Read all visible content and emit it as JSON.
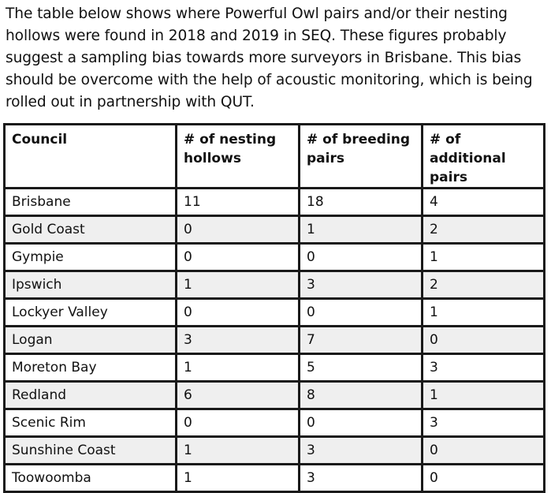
{
  "intro": {
    "text": "The table below shows where Powerful Owl pairs and/or their nesting hollows were found in 2018 and 2019 in SEQ. These figures probably suggest a sampling bias towards more surveyors in Brisbane. This bias should be overcome with the help of acoustic monitoring, which is being rolled out in partnership with QUT."
  },
  "table": {
    "headers": {
      "council": "Council",
      "nesting_hollows": "# of nesting hollows",
      "breeding_pairs": "# of breeding pairs",
      "additional_pairs": "# of additional pairs"
    },
    "rows": [
      {
        "council": "Brisbane",
        "nesting_hollows": "11",
        "breeding_pairs": "18",
        "additional_pairs": "4"
      },
      {
        "council": "Gold Coast",
        "nesting_hollows": "0",
        "breeding_pairs": "1",
        "additional_pairs": "2"
      },
      {
        "council": "Gympie",
        "nesting_hollows": "0",
        "breeding_pairs": "0",
        "additional_pairs": "1"
      },
      {
        "council": "Ipswich",
        "nesting_hollows": "1",
        "breeding_pairs": "3",
        "additional_pairs": "2"
      },
      {
        "council": "Lockyer Valley",
        "nesting_hollows": "0",
        "breeding_pairs": "0",
        "additional_pairs": "1"
      },
      {
        "council": "Logan",
        "nesting_hollows": "3",
        "breeding_pairs": "7",
        "additional_pairs": "0"
      },
      {
        "council": "Moreton Bay",
        "nesting_hollows": "1",
        "breeding_pairs": "5",
        "additional_pairs": "3"
      },
      {
        "council": "Redland",
        "nesting_hollows": "6",
        "breeding_pairs": "8",
        "additional_pairs": "1"
      },
      {
        "council": "Scenic Rim",
        "nesting_hollows": "0",
        "breeding_pairs": "0",
        "additional_pairs": "3"
      },
      {
        "council": "Sunshine Coast",
        "nesting_hollows": "1",
        "breeding_pairs": "3",
        "additional_pairs": "0"
      },
      {
        "council": "Toowoomba",
        "nesting_hollows": "1",
        "breeding_pairs": "3",
        "additional_pairs": "0"
      }
    ]
  }
}
